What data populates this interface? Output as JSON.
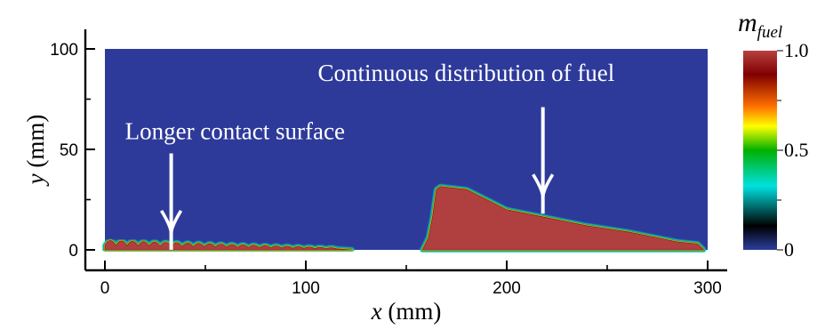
{
  "chart_data": {
    "type": "heatmap",
    "title": "",
    "xlabel_var": "x",
    "xlabel_unit": " (mm)",
    "ylabel_var": "y",
    "ylabel_unit": " (mm)",
    "xlim": [
      0,
      300
    ],
    "ylim": [
      0,
      100
    ],
    "xticks": [
      0,
      100,
      200,
      300
    ],
    "yticks": [
      0,
      50,
      100
    ],
    "grid": false,
    "colorbar": {
      "title_main": "m",
      "title_sub": "fuel",
      "range": [
        0,
        1
      ],
      "tick_labels": [
        "1.0",
        "0.5",
        "0"
      ],
      "tick_values": [
        1.0,
        0.5,
        0
      ],
      "colors": [
        "#2b3e9c",
        "#000000",
        "#00e0e0",
        "#00b000",
        "#ffff00",
        "#ff7000",
        "#800000",
        "#b84040"
      ],
      "stops": [
        0,
        0.12,
        0.32,
        0.5,
        0.62,
        0.72,
        0.88,
        1.0
      ]
    },
    "background_color": "#2e3a9a",
    "fuel_color": "#b04040",
    "fuel_regions": [
      {
        "name": "wavy fuel layer",
        "boundary": [
          [
            0,
            3
          ],
          [
            105,
            3
          ],
          [
            110,
            1.5
          ],
          [
            115,
            0.5
          ],
          [
            120,
            0
          ]
        ],
        "wave": {
          "x_start": 0,
          "x_end": 115,
          "period": 5.5,
          "amplitude_start": 2.5,
          "amplitude_end": 0.5
        }
      },
      {
        "name": "fuel block",
        "boundary": [
          [
            158,
            0
          ],
          [
            161,
            6
          ],
          [
            163,
            16
          ],
          [
            165,
            30
          ],
          [
            167,
            31.5
          ],
          [
            180,
            30
          ],
          [
            190,
            25
          ],
          [
            200,
            20
          ],
          [
            220,
            16
          ],
          [
            240,
            12
          ],
          [
            260,
            9
          ],
          [
            275,
            6
          ],
          [
            285,
            4
          ],
          [
            295,
            3
          ],
          [
            297,
            1
          ],
          [
            298,
            0
          ]
        ]
      }
    ],
    "annotations": [
      {
        "text": "Longer contact surface",
        "text_x": 10,
        "text_y": 55,
        "arrow_x": 33,
        "arrow_from_y": 48,
        "arrow_to_y": 8
      },
      {
        "text": "Continuous distribution of fuel",
        "text_x": 106,
        "text_y": 84,
        "arrow_x": 218,
        "arrow_from_y": 71,
        "arrow_to_y": 26
      }
    ]
  }
}
